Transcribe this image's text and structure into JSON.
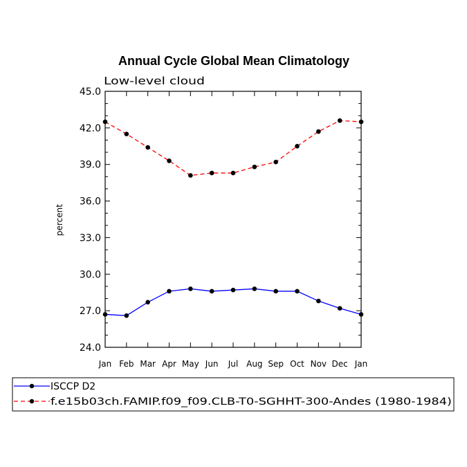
{
  "chart_data": {
    "type": "line",
    "title": "Annual Cycle Global Mean Climatology",
    "subtitle": "Low-level cloud",
    "xlabel": "",
    "ylabel": "percent",
    "categories": [
      "Jan",
      "Feb",
      "Mar",
      "Apr",
      "May",
      "Jun",
      "Jul",
      "Aug",
      "Sep",
      "Oct",
      "Nov",
      "Dec",
      "Jan"
    ],
    "ylim": [
      24.0,
      45.0
    ],
    "yticks": [
      "24.0",
      "27.0",
      "30.0",
      "33.0",
      "36.0",
      "39.0",
      "42.0",
      "45.0"
    ],
    "grid": false,
    "legend_position": "bottom",
    "series": [
      {
        "name": "ISCCP D2",
        "color": "#0000ff",
        "line_style": "solid",
        "values": [
          26.7,
          26.6,
          27.7,
          28.6,
          28.8,
          28.6,
          28.7,
          28.8,
          28.6,
          28.6,
          27.8,
          27.2,
          26.7
        ]
      },
      {
        "name": "f.e15b03ch.FAMIP.f09_f09.CLB-T0-SGHHT-300-Andes (1980-1984)",
        "color": "#ff0000",
        "line_style": "dashed",
        "values": [
          42.5,
          41.5,
          40.4,
          39.3,
          38.1,
          38.3,
          38.3,
          38.8,
          39.2,
          40.5,
          41.7,
          42.6,
          42.5
        ]
      }
    ]
  }
}
